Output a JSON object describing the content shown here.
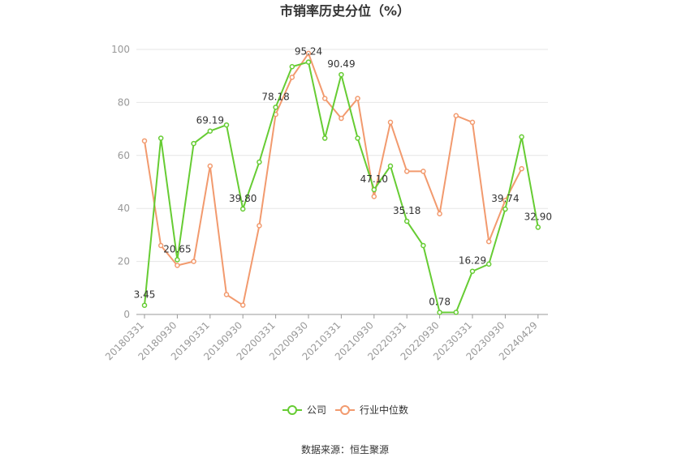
{
  "chart_data": {
    "type": "line",
    "title": "市销率历史分位（%）",
    "ylim": [
      0,
      100
    ],
    "yticks": [
      0,
      20,
      40,
      60,
      80,
      100
    ],
    "grid": true,
    "legend_position": "bottom",
    "x_tick_labels": [
      "20180331",
      "20180930",
      "20190331",
      "20190930",
      "20200331",
      "20200930",
      "20210331",
      "20210930",
      "20220331",
      "20220930",
      "20230331",
      "20230930",
      "20240429"
    ],
    "x_count": 25,
    "series": [
      {
        "name": "公司",
        "color": "#66cc33",
        "values": [
          3.45,
          66.5,
          20.65,
          64.5,
          69.19,
          71.5,
          39.8,
          57.5,
          78.18,
          93.5,
          95.24,
          66.5,
          90.49,
          66.5,
          47.1,
          56.0,
          35.18,
          26.0,
          0.78,
          0.8,
          16.29,
          19.0,
          39.74,
          67.0,
          32.9
        ],
        "labels": {
          "0": "3.45",
          "2": "20.65",
          "4": "69.19",
          "6": "39.80",
          "8": "78.18",
          "10": "95.24",
          "12": "90.49",
          "14": "47.10",
          "16": "35.18",
          "18": "0.78",
          "20": "16.29",
          "22": "39.74",
          "24": "32.90"
        }
      },
      {
        "name": "行业中位数",
        "color": "#f29a6e",
        "values": [
          65.5,
          26.0,
          18.5,
          20.0,
          56.0,
          7.5,
          3.5,
          33.5,
          75.5,
          89.5,
          98.5,
          81.5,
          74.0,
          81.5,
          44.5,
          72.5,
          54.0,
          54.0,
          38.0,
          75.0,
          72.5,
          27.5,
          43.0,
          55.0,
          null
        ]
      }
    ],
    "source": "数据来源：恒生聚源"
  }
}
